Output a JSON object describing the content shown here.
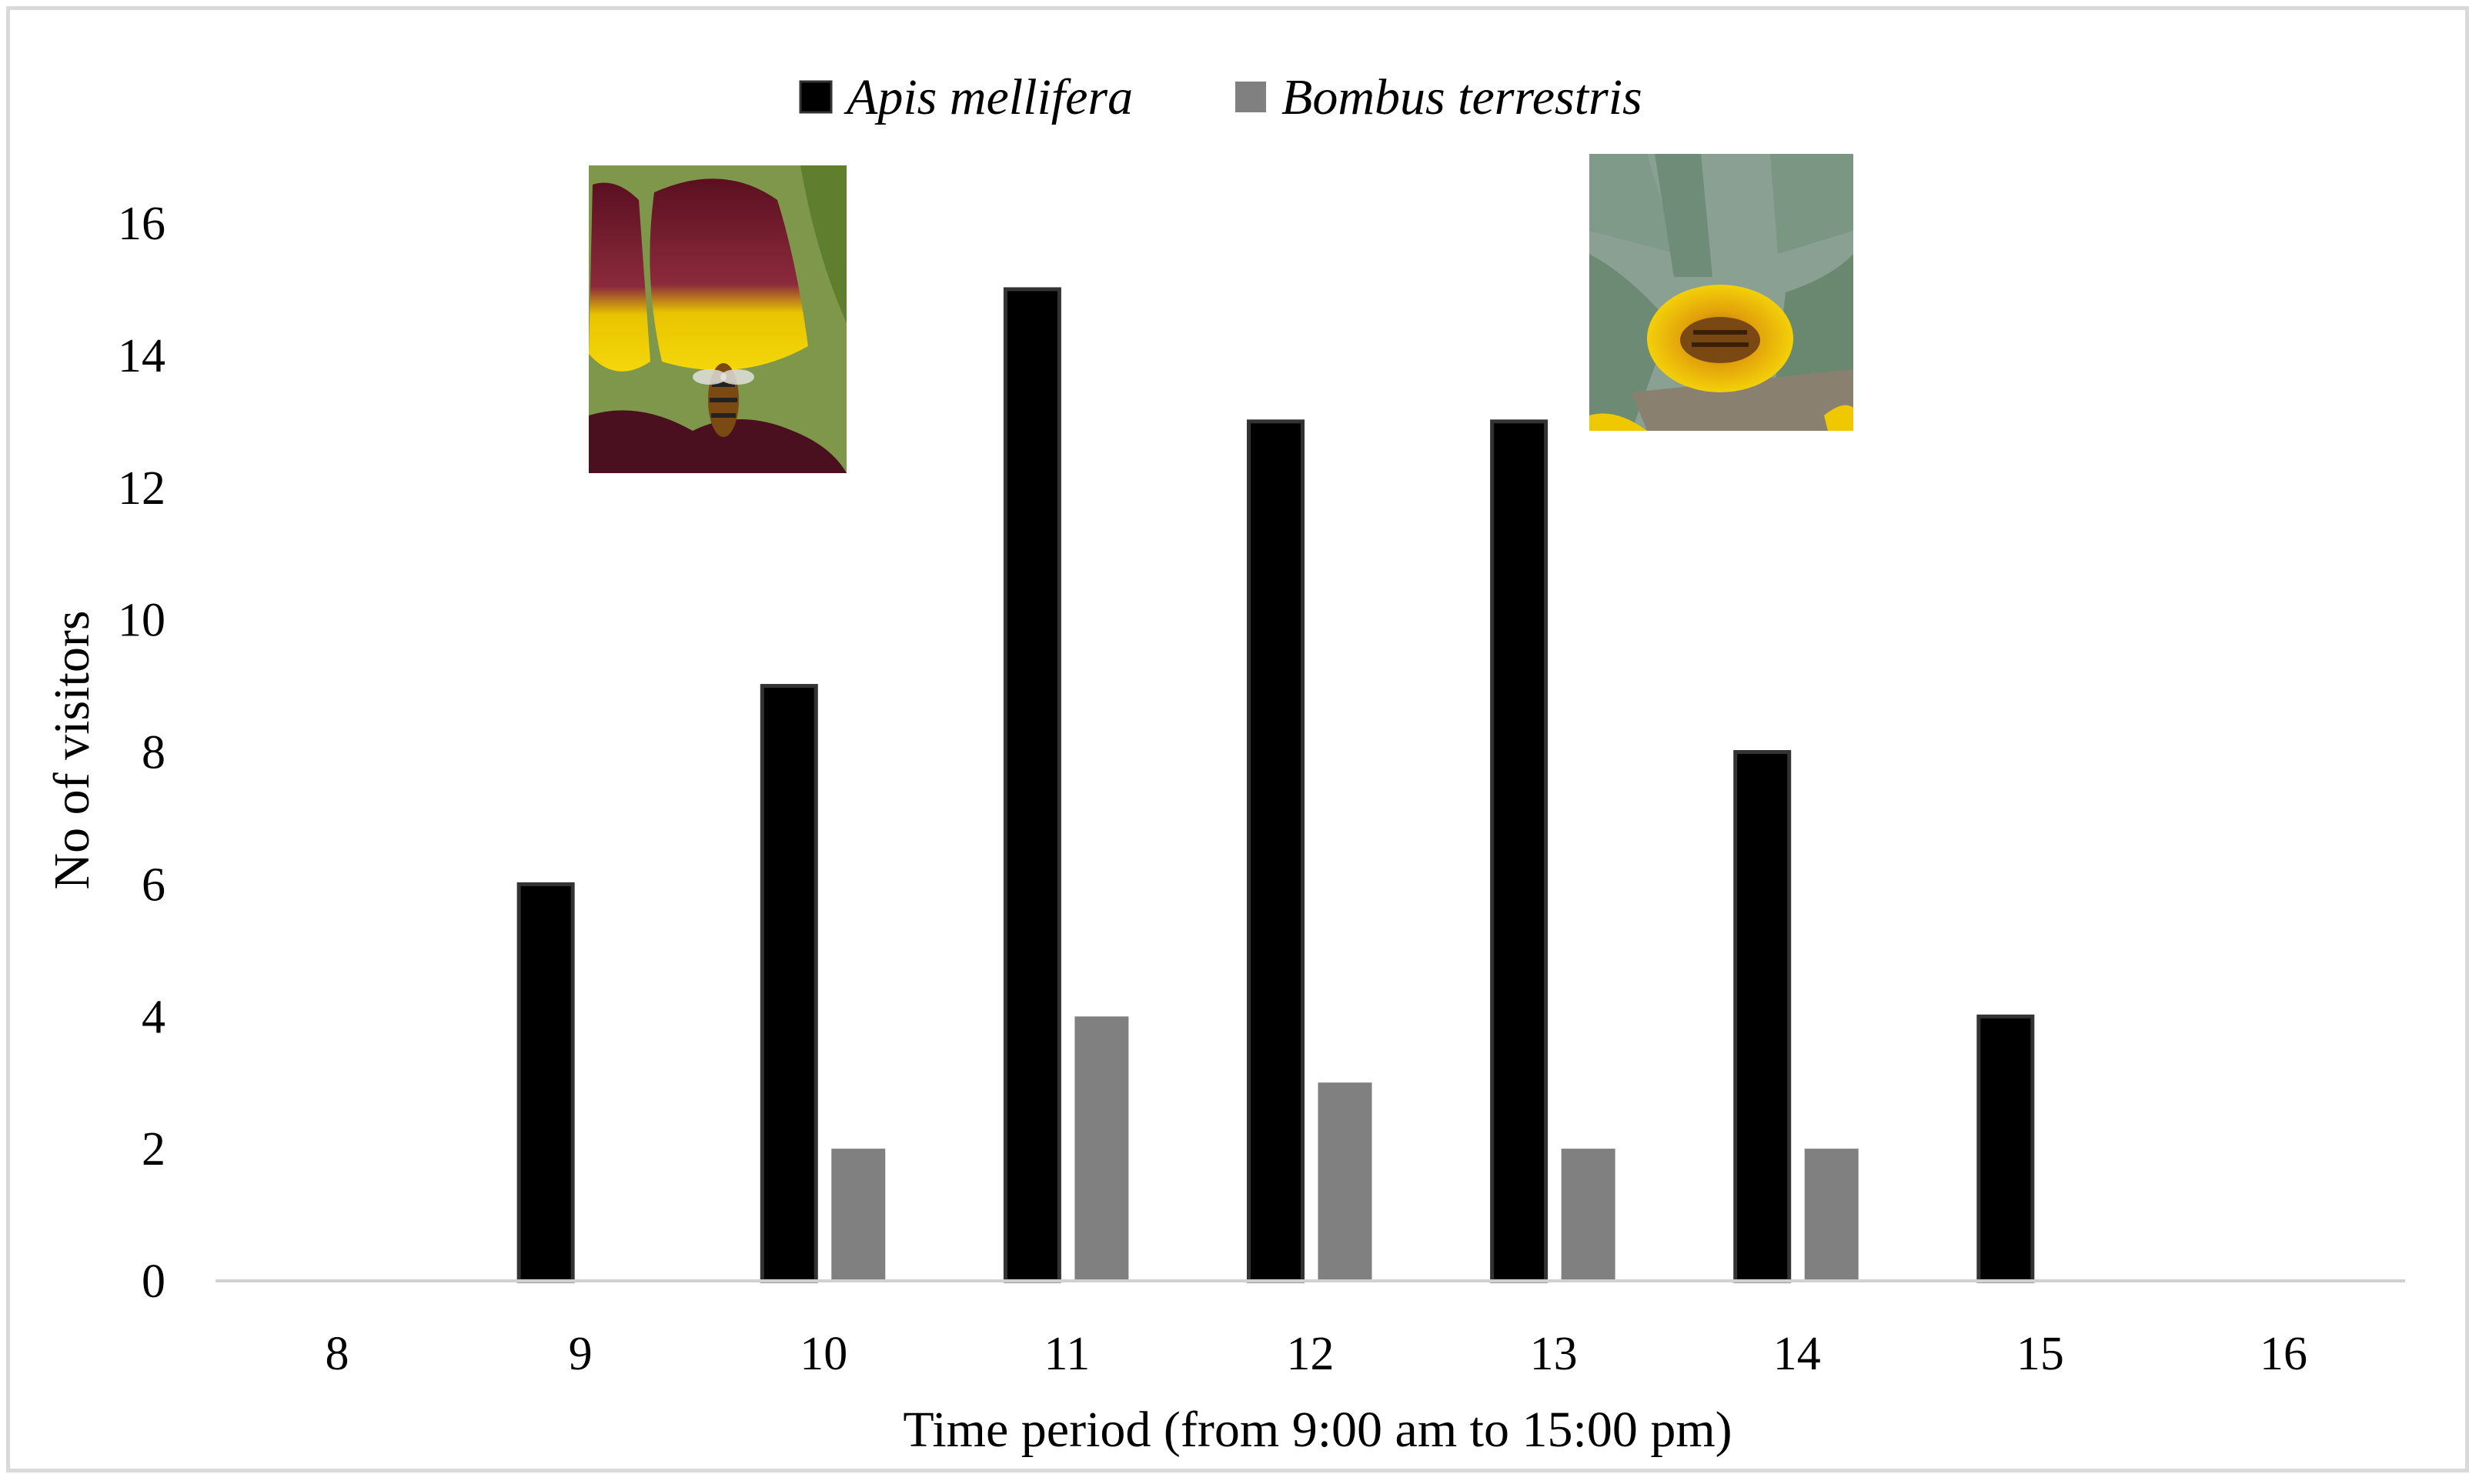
{
  "chart_data": {
    "type": "bar",
    "title": "",
    "xlabel": "Time period (from 9:00 am to 15:00 pm)",
    "ylabel": "No of visitors",
    "ylim": [
      0,
      16
    ],
    "yticks": [
      0,
      2,
      4,
      6,
      8,
      10,
      12,
      14,
      16
    ],
    "categories": [
      "8",
      "9",
      "10",
      "11",
      "12",
      "13",
      "14",
      "15",
      "16"
    ],
    "series": [
      {
        "name": "Apis mellifera",
        "color": "#000000",
        "values": [
          0,
          6,
          9,
          15,
          13,
          13,
          8,
          4,
          0
        ]
      },
      {
        "name": "Bombus terrestris",
        "color": "#808080",
        "values": [
          0,
          0,
          2,
          4,
          3,
          2,
          2,
          0,
          0
        ]
      }
    ],
    "legend_position": "top-center",
    "grid": false,
    "photos": [
      "flower-photo-fritillaria-bee",
      "flower-photo-tulip-bee"
    ]
  }
}
